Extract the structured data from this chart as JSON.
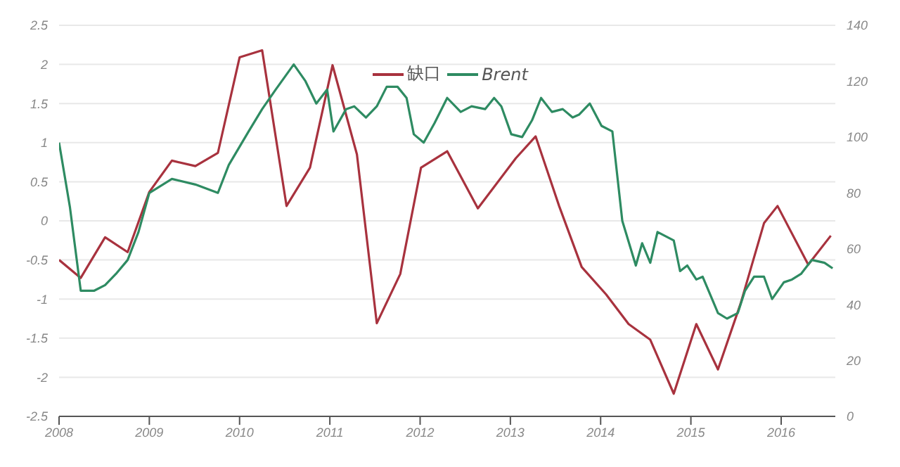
{
  "chart_data": {
    "type": "line",
    "xlim": [
      2008,
      2016.6
    ],
    "xticks": [
      2008,
      2009,
      2010,
      2011,
      2012,
      2013,
      2014,
      2015,
      2016
    ],
    "ylim": [
      -2.5,
      2.5
    ],
    "yticks": [
      -2.5,
      -2,
      -1.5,
      -1,
      -0.5,
      0,
      0.5,
      1,
      1.5,
      2,
      2.5
    ],
    "y2lim": [
      0,
      140
    ],
    "y2ticks": [
      0,
      20,
      40,
      60,
      80,
      100,
      120,
      140
    ],
    "grid": "y",
    "legend": "top",
    "marker": "none",
    "line_style": "solid",
    "series": [
      {
        "name": "缺口",
        "color": "#a8323e",
        "x": [
          2008.0,
          2008.24,
          2008.51,
          2008.76,
          2009.0,
          2009.25,
          2009.51,
          2009.76,
          2010.0,
          2010.25,
          2010.52,
          2010.78,
          2011.03,
          2011.3,
          2011.52,
          2011.78,
          2012.01,
          2012.3,
          2012.64,
          2013.06,
          2013.28,
          2013.54,
          2013.79,
          2014.06,
          2014.31,
          2014.55,
          2014.81,
          2015.06,
          2015.3,
          2015.55,
          2015.81,
          2015.96,
          2016.3,
          2016.55
        ],
        "values": [
          -0.5,
          -0.73,
          -0.21,
          -0.4,
          0.37,
          0.77,
          0.7,
          0.87,
          2.09,
          2.18,
          0.19,
          0.68,
          1.99,
          0.85,
          -1.31,
          -0.68,
          0.68,
          0.89,
          0.16,
          0.8,
          1.08,
          0.19,
          -0.59,
          -0.94,
          -1.32,
          -1.52,
          -2.21,
          -1.32,
          -1.9,
          -1.06,
          -0.03,
          0.19,
          -0.56,
          -0.19
        ]
      },
      {
        "name": "Brent",
        "color": "#2e8b62",
        "axis": "y2",
        "x": [
          2008.0,
          2008.12,
          2008.24,
          2008.39,
          2008.51,
          2008.63,
          2008.76,
          2008.88,
          2009.0,
          2009.25,
          2009.51,
          2009.76,
          2009.88,
          2010.1,
          2010.25,
          2010.4,
          2010.6,
          2010.73,
          2010.85,
          2010.97,
          2011.04,
          2011.18,
          2011.27,
          2011.4,
          2011.52,
          2011.63,
          2011.75,
          2011.85,
          2011.93,
          2012.04,
          2012.16,
          2012.3,
          2012.45,
          2012.57,
          2012.72,
          2012.82,
          2012.9,
          2013.01,
          2013.13,
          2013.24,
          2013.34,
          2013.46,
          2013.58,
          2013.69,
          2013.76,
          2013.88,
          2014.01,
          2014.13,
          2014.24,
          2014.39,
          2014.46,
          2014.55,
          2014.63,
          2014.81,
          2014.88,
          2014.96,
          2015.06,
          2015.13,
          2015.3,
          2015.4,
          2015.52,
          2015.6,
          2015.7,
          2015.81,
          2015.9,
          2016.03,
          2016.12,
          2016.22,
          2016.34,
          2016.48,
          2016.57
        ],
        "values": [
          98,
          75,
          45,
          45,
          47,
          51,
          56,
          66,
          80,
          85,
          83,
          80,
          90,
          102,
          110,
          117,
          126,
          120,
          112,
          117,
          102,
          110,
          111,
          107,
          111,
          118,
          118,
          114,
          101,
          98,
          105,
          114,
          109,
          111,
          110,
          114,
          111,
          101,
          100,
          106,
          114,
          109,
          110,
          107,
          108,
          112,
          104,
          102,
          70,
          54,
          62,
          55,
          66,
          63,
          52,
          54,
          49,
          50,
          37,
          35,
          37,
          45,
          50,
          50,
          42,
          48,
          49,
          51,
          56,
          55,
          53
        ]
      }
    ]
  }
}
